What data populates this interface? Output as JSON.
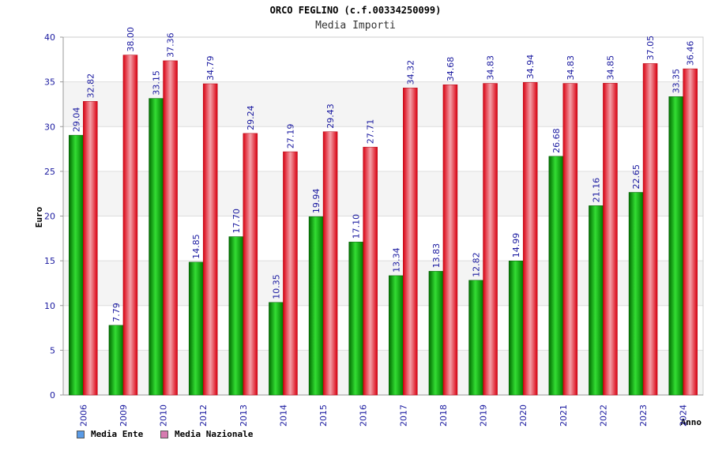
{
  "chart_data": {
    "type": "bar",
    "title": "ORCO FEGLINO (c.f.00334250099)",
    "subtitle": "Media Importi",
    "ylabel": "Euro",
    "xlabel": "Anno",
    "ylim": [
      0,
      40
    ],
    "yticks": [
      0,
      5,
      10,
      15,
      20,
      25,
      30,
      35,
      40
    ],
    "grid": true,
    "categories": [
      "2006",
      "2009",
      "2010",
      "2012",
      "2013",
      "2014",
      "2015",
      "2016",
      "2017",
      "2018",
      "2019",
      "2020",
      "2021",
      "2022",
      "2023",
      "2024"
    ],
    "series": [
      {
        "name": "Media Ente",
        "color": "#00aa00",
        "legend_color": "#5a9be6",
        "values": [
          29.04,
          7.79,
          33.15,
          14.85,
          17.7,
          10.35,
          19.94,
          17.1,
          13.34,
          13.83,
          12.82,
          14.99,
          26.68,
          21.16,
          22.65,
          33.35
        ],
        "labels": [
          "29.04",
          "7.79",
          "33.15",
          "14.85",
          "17.70",
          "10.35",
          "19.94",
          "17.10",
          "13.34",
          "13.83",
          "12.82",
          "14.99",
          "26.68",
          "21.16",
          "22.65",
          "33.35"
        ]
      },
      {
        "name": "Media Nazionale",
        "color": "#e8202a",
        "legend_color": "#d67bb0",
        "values": [
          32.82,
          38.0,
          37.36,
          34.79,
          29.24,
          27.19,
          29.43,
          27.71,
          34.32,
          34.68,
          34.83,
          34.94,
          34.83,
          34.85,
          37.05,
          36.46
        ],
        "labels": [
          "32.82",
          "38.00",
          "37.36",
          "34.79",
          "29.24",
          "27.19",
          "29.43",
          "27.71",
          "34.32",
          "34.68",
          "34.83",
          "34.94",
          "34.83",
          "34.85",
          "37.05",
          "36.46"
        ]
      }
    ],
    "legend_position": "bottom-left"
  }
}
